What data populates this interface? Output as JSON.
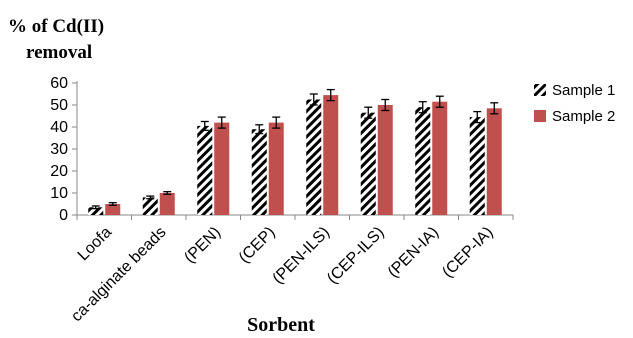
{
  "chart_data": {
    "type": "bar",
    "ylabel_lines": [
      "% of Cd(II)",
      "removal"
    ],
    "xlabel": "Sorbent",
    "categories": [
      "Loofa",
      "ca-alginate beads",
      "(PEN)",
      "(CEP)",
      "(PEN-ILS)",
      "(CEP-ILS)",
      "(PEN-IA)",
      "(CEP-IA)"
    ],
    "ylim": [
      0,
      60
    ],
    "yticks": [
      0,
      10,
      20,
      30,
      40,
      50,
      60
    ],
    "grid": false,
    "legend_position": "right",
    "series": [
      {
        "name": "Sample 1",
        "pattern": "diagonal-hatch",
        "color": "#000000",
        "values": [
          3.5,
          8,
          40.5,
          39,
          52.5,
          46.5,
          49,
          44.5
        ],
        "errors": [
          0.6,
          0.6,
          2,
          2,
          2.5,
          2.5,
          2.5,
          2.5
        ]
      },
      {
        "name": "Sample 2",
        "pattern": "solid",
        "color": "#C0504D",
        "values": [
          5,
          10,
          42,
          42,
          54.5,
          50,
          51.5,
          48.5
        ],
        "errors": [
          0.6,
          0.6,
          2.5,
          2.5,
          2.5,
          2.5,
          2.5,
          2.5
        ]
      }
    ]
  }
}
